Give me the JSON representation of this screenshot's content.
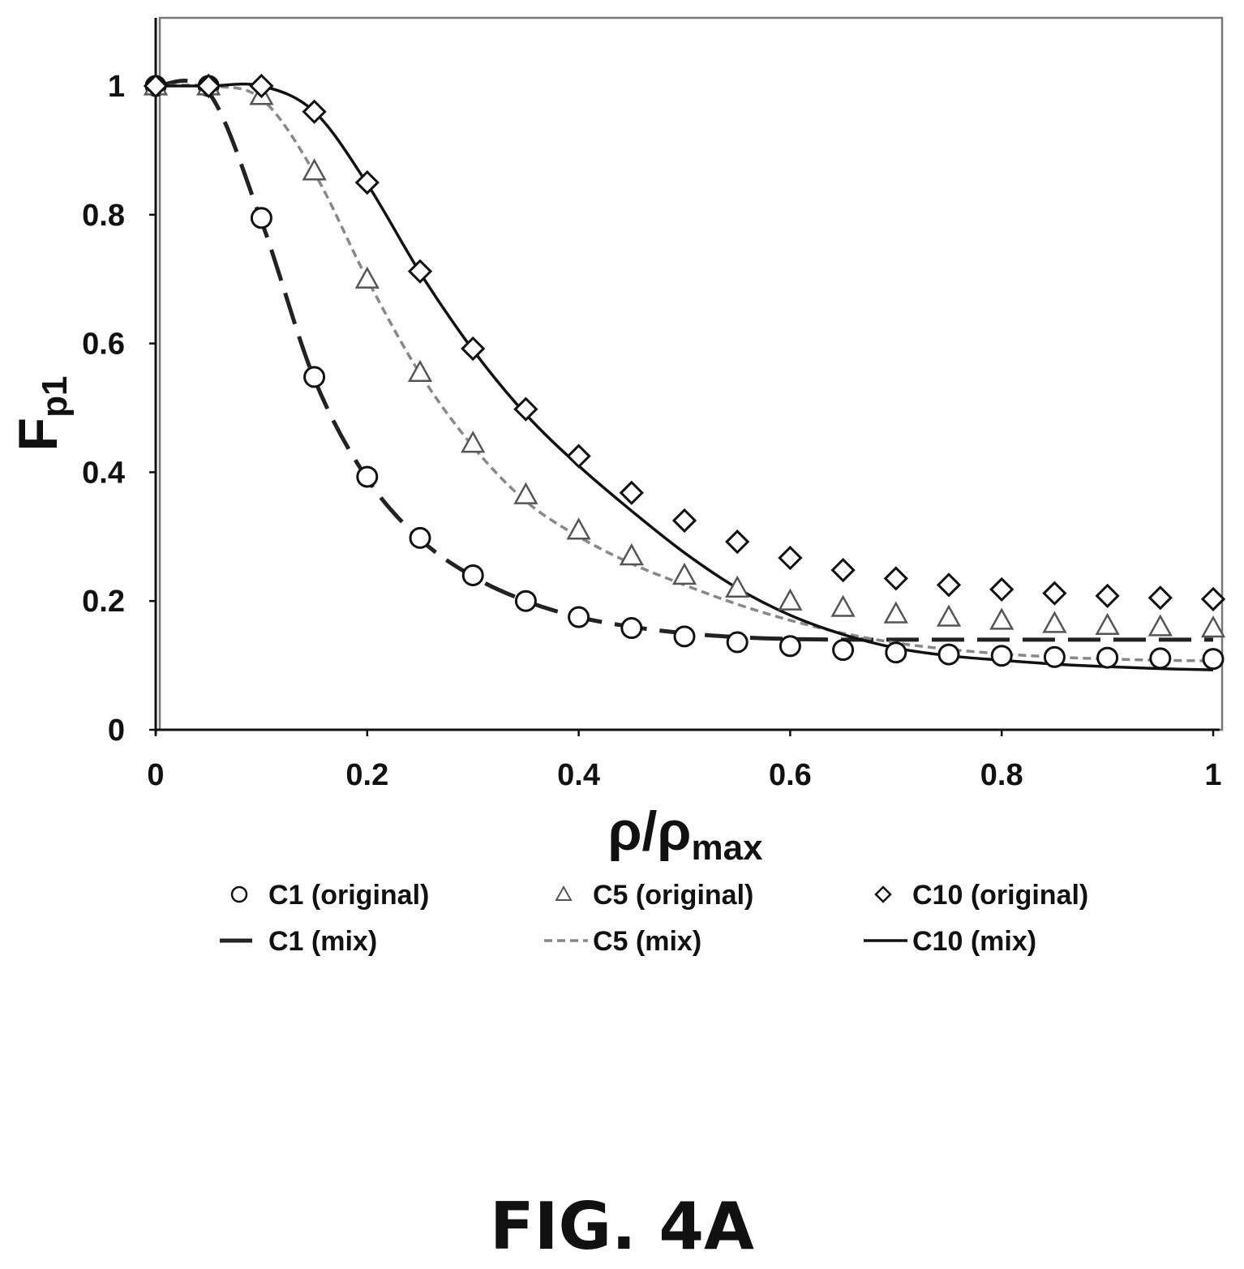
{
  "chart_data": {
    "type": "scatter",
    "xlabel": "ρ/ρ",
    "xlabel_sub": "max",
    "ylabel": "F",
    "ylabel_sub": "p1",
    "xlim": [
      0,
      1
    ],
    "ylim": [
      0,
      1.1
    ],
    "xticks": [
      "0",
      "0.2",
      "0.4",
      "0.6",
      "0.8",
      "1"
    ],
    "xtick_values": [
      0,
      0.2,
      0.4,
      0.6,
      0.8,
      1
    ],
    "yticks": [
      "0",
      "0.2",
      "0.4",
      "0.6",
      "0.8",
      "1"
    ],
    "ytick_values": [
      0,
      0.2,
      0.4,
      0.6,
      0.8,
      1
    ],
    "grid": false,
    "legend_position": "bottom",
    "x": [
      0,
      0.05,
      0.1,
      0.15,
      0.2,
      0.25,
      0.3,
      0.35,
      0.4,
      0.45,
      0.5,
      0.55,
      0.6,
      0.65,
      0.7,
      0.75,
      0.8,
      0.85,
      0.9,
      0.95,
      1.0
    ],
    "series": [
      {
        "name": "C1 (original)",
        "kind": "markers",
        "marker": "circle",
        "values": [
          1.0,
          1.0,
          0.795,
          0.548,
          0.393,
          0.298,
          0.24,
          0.2,
          0.175,
          0.158,
          0.145,
          0.136,
          0.13,
          0.124,
          0.12,
          0.117,
          0.115,
          0.113,
          0.112,
          0.111,
          0.11
        ]
      },
      {
        "name": "C5 (original)",
        "kind": "markers",
        "marker": "triangle",
        "values": [
          1.0,
          1.0,
          0.985,
          0.868,
          0.7,
          0.555,
          0.445,
          0.365,
          0.31,
          0.27,
          0.24,
          0.22,
          0.2,
          0.19,
          0.18,
          0.175,
          0.17,
          0.165,
          0.162,
          0.16,
          0.158
        ]
      },
      {
        "name": "C10 (original)",
        "kind": "markers",
        "marker": "diamond",
        "values": [
          1.0,
          1.0,
          1.0,
          0.96,
          0.85,
          0.712,
          0.592,
          0.498,
          0.425,
          0.368,
          0.325,
          0.292,
          0.267,
          0.248,
          0.235,
          0.225,
          0.218,
          0.212,
          0.208,
          0.205,
          0.203
        ]
      },
      {
        "name": "C1 (mix)",
        "kind": "line",
        "style": "long-dash",
        "values": [
          1.0,
          0.99,
          0.79,
          0.545,
          0.39,
          0.296,
          0.238,
          0.2,
          0.175,
          0.16,
          0.15,
          0.144,
          0.141,
          0.14,
          0.14,
          0.14,
          0.14,
          0.14,
          0.14,
          0.14,
          0.14
        ]
      },
      {
        "name": "C5 (mix)",
        "kind": "line",
        "style": "short-dash",
        "values": [
          1.0,
          1.0,
          0.98,
          0.865,
          0.7,
          0.553,
          0.44,
          0.355,
          0.3,
          0.258,
          0.225,
          0.195,
          0.17,
          0.15,
          0.135,
          0.125,
          0.118,
          0.113,
          0.11,
          0.108,
          0.107
        ]
      },
      {
        "name": "C10 (mix)",
        "kind": "line",
        "style": "solid",
        "values": [
          1.0,
          1.0,
          1.0,
          0.96,
          0.848,
          0.71,
          0.59,
          0.49,
          0.41,
          0.34,
          0.275,
          0.22,
          0.178,
          0.148,
          0.127,
          0.115,
          0.108,
          0.102,
          0.098,
          0.095,
          0.093
        ]
      }
    ]
  },
  "caption": "FIG. 4A"
}
